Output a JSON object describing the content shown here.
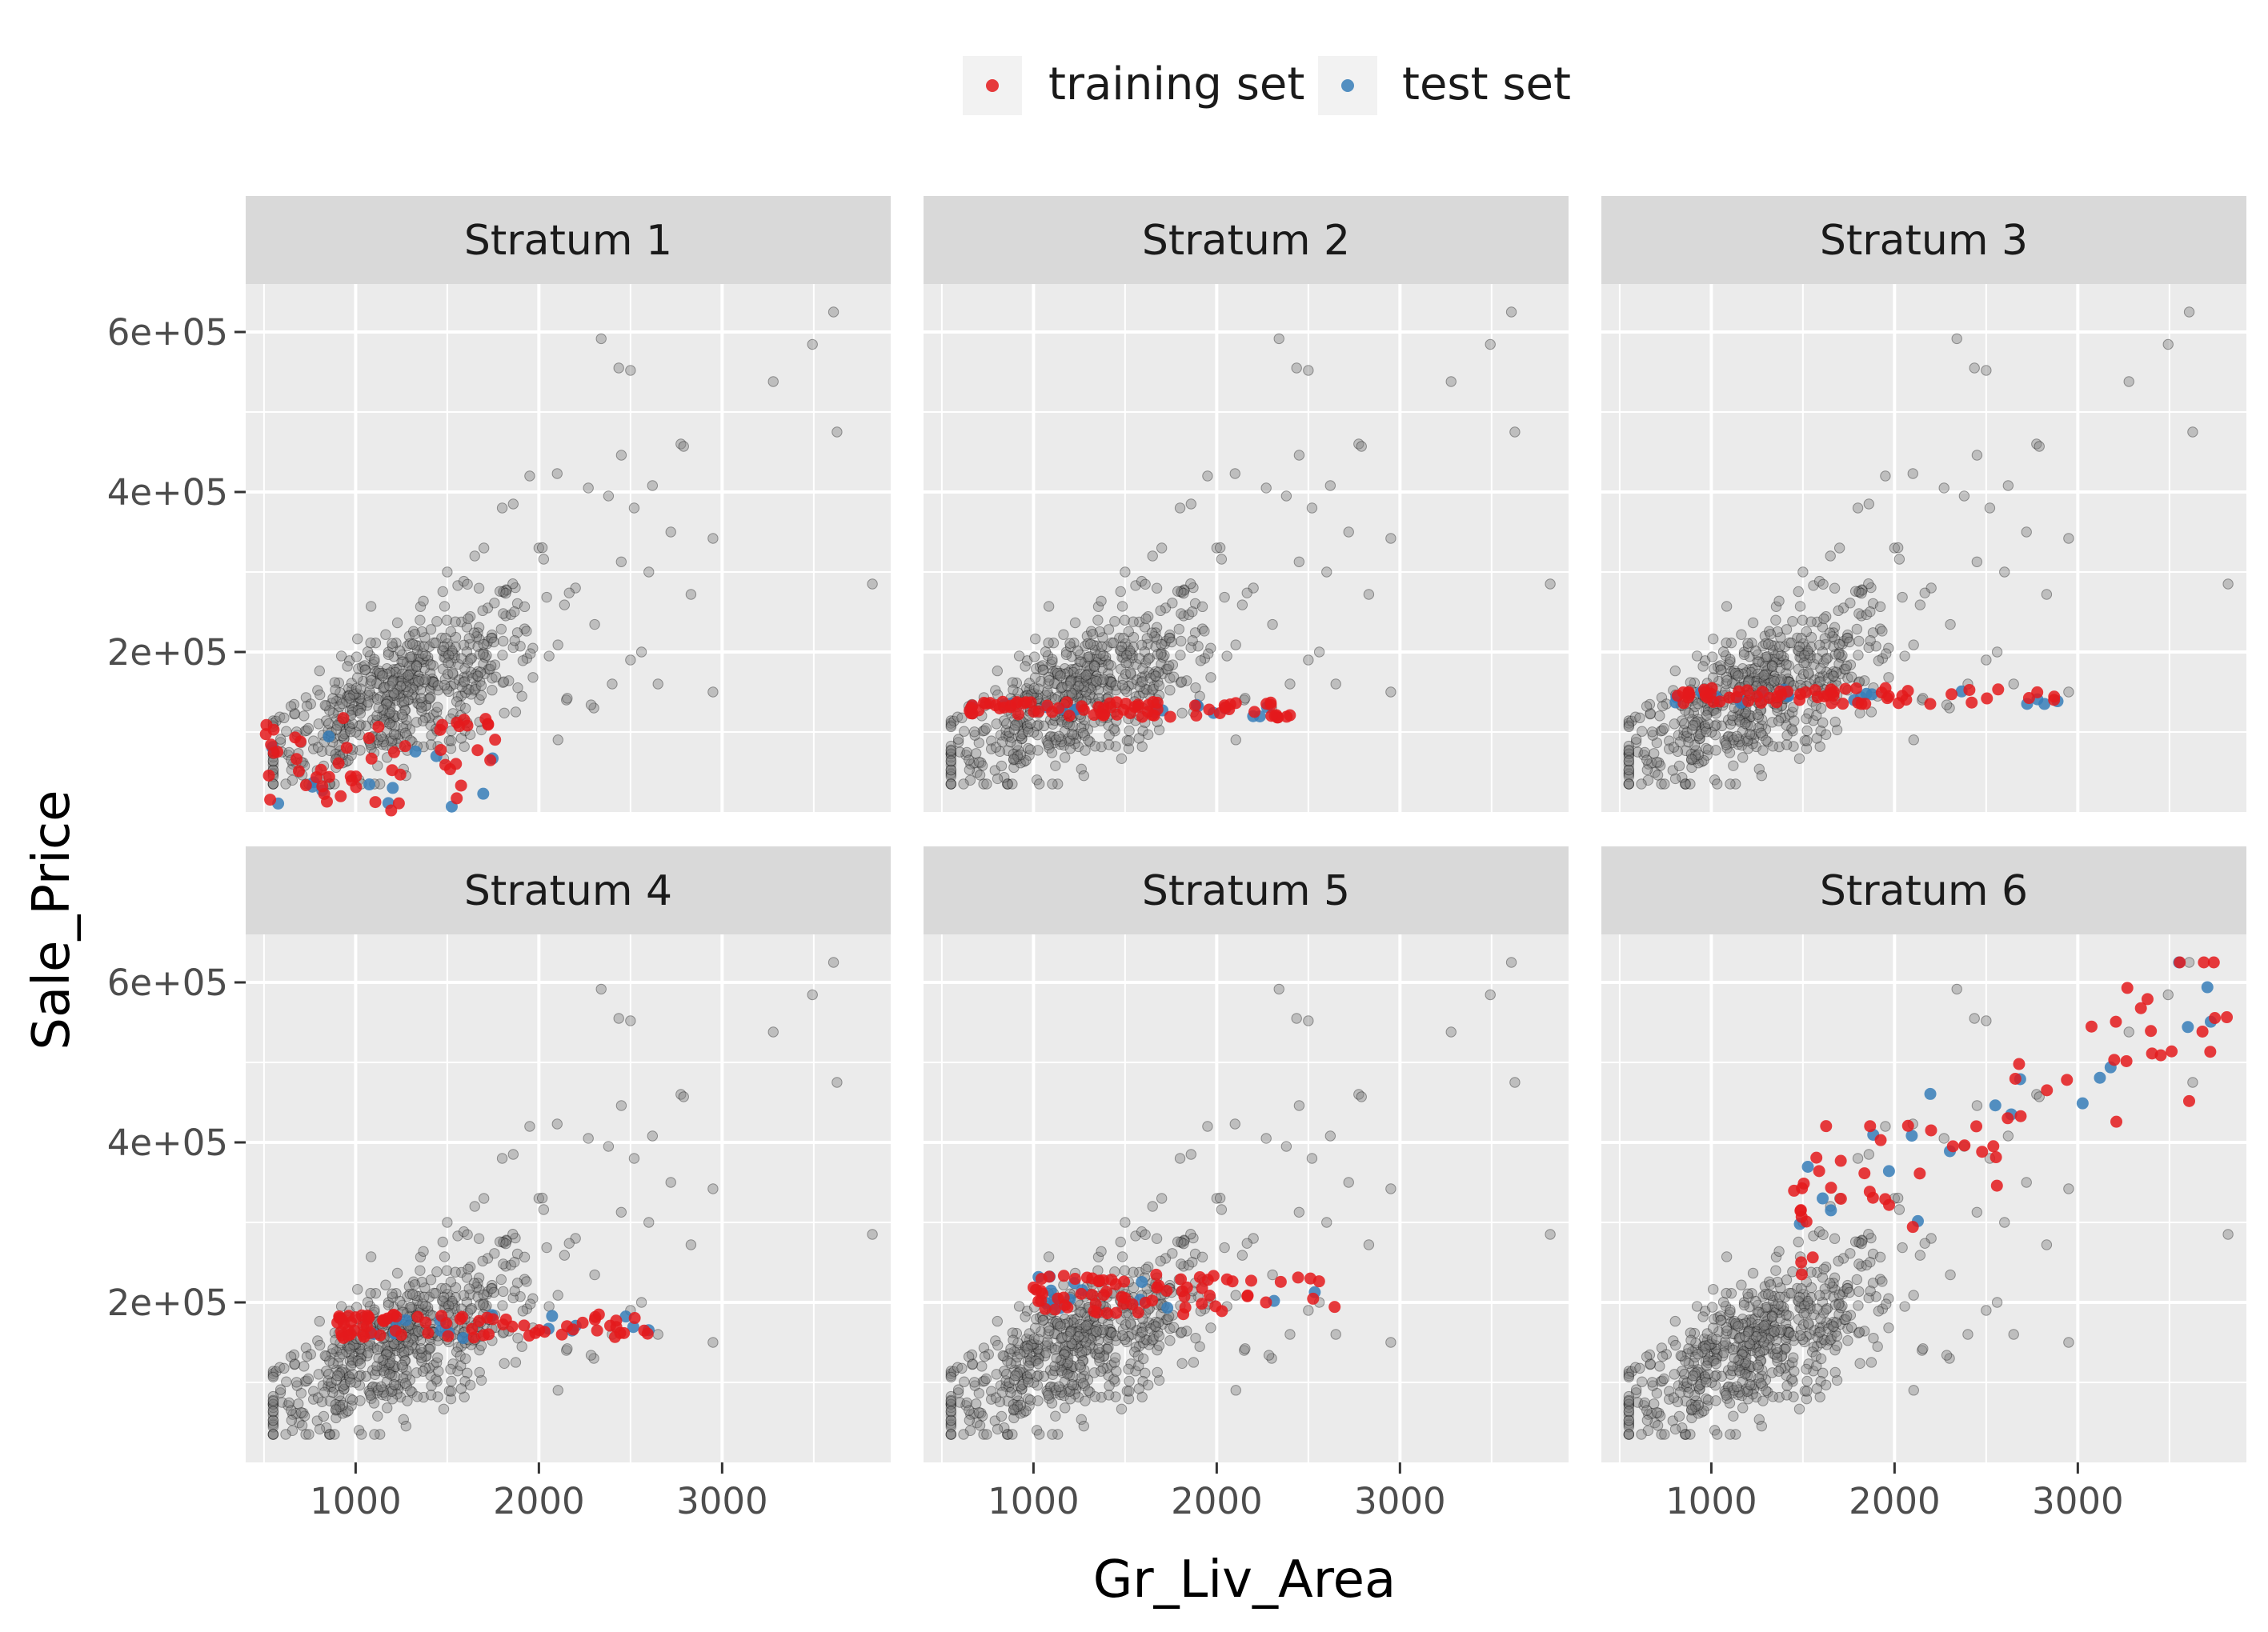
{
  "chart_data": {
    "type": "scatter",
    "xlabel": "Gr_Liv_Area",
    "ylabel": "Sale_Price",
    "xlim": [
      400,
      3920
    ],
    "ylim": [
      0,
      660000
    ],
    "x_ticks": [
      1000,
      2000,
      3000
    ],
    "x_tick_labels": [
      "1000",
      "2000",
      "3000"
    ],
    "y_ticks": [
      200000,
      400000,
      600000
    ],
    "y_tick_labels": [
      "2e+05",
      "4e+05",
      "6e+05"
    ],
    "grid": true,
    "legend": {
      "position": "top",
      "entries": [
        {
          "label": "training set",
          "color": "#E41A1C"
        },
        {
          "label": "test set",
          "color": "#377EB8"
        }
      ]
    },
    "background_color": "#808080",
    "facets": [
      {
        "label": "Stratum 1",
        "y_range": [
          0,
          120000
        ],
        "x_range": [
          500,
          1800
        ],
        "train_n": 55,
        "test_n": 14
      },
      {
        "label": "Stratum 2",
        "y_range": [
          118000,
          138000
        ],
        "x_range": [
          650,
          2400
        ],
        "train_n": 75,
        "test_n": 18
      },
      {
        "label": "Stratum 3",
        "y_range": [
          135000,
          155000
        ],
        "x_range": [
          800,
          2950
        ],
        "train_n": 65,
        "test_n": 20
      },
      {
        "label": "Stratum 4",
        "y_range": [
          155000,
          185000
        ],
        "x_range": [
          900,
          2650
        ],
        "train_n": 75,
        "test_n": 16
      },
      {
        "label": "Stratum 5",
        "y_range": [
          185000,
          235000
        ],
        "x_range": [
          1000,
          2650
        ],
        "train_n": 70,
        "test_n": 15
      },
      {
        "label": "Stratum 6",
        "y_range": [
          235000,
          625000
        ],
        "x_range": [
          1450,
          3820
        ],
        "train_n": 60,
        "test_n": 20
      }
    ],
    "background_points": [
      [
        3608,
        625000
      ],
      [
        3493,
        584500
      ],
      [
        2340,
        591600
      ],
      [
        2436,
        555000
      ],
      [
        2500,
        552000
      ],
      [
        3279,
        538000
      ],
      [
        3627,
        475000
      ],
      [
        2775,
        460000
      ],
      [
        2790,
        457000
      ],
      [
        2450,
        446000
      ],
      [
        1950,
        420000
      ],
      [
        2100,
        423000
      ],
      [
        2270,
        405000
      ],
      [
        2380,
        395000
      ],
      [
        2620,
        408000
      ],
      [
        1860,
        385000
      ],
      [
        1800,
        380000
      ],
      [
        2520,
        380000
      ],
      [
        2950,
        342000
      ],
      [
        2720,
        350000
      ],
      [
        2600,
        300000
      ],
      [
        2830,
        272000
      ],
      [
        3820,
        285000
      ],
      [
        2950,
        150000
      ],
      [
        2650,
        160000
      ],
      [
        2500,
        190000
      ],
      [
        2560,
        200000
      ],
      [
        2400,
        160000
      ],
      [
        2300,
        130000
      ],
      [
        2150,
        140000
      ],
      [
        2000,
        330000
      ],
      [
        2200,
        280000
      ],
      [
        1700,
        330000
      ],
      [
        1500,
        300000
      ],
      [
        1650,
        320000
      ]
    ]
  }
}
